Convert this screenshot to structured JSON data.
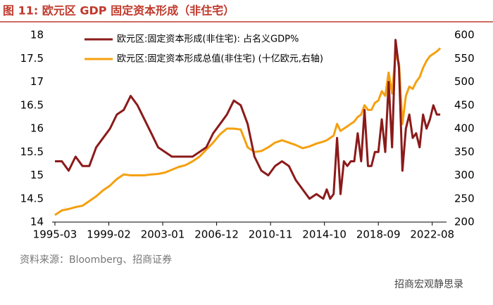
{
  "chart_data": {
    "type": "line",
    "title": "图 11:  欧元区 GDP 固定资本形成（非住宅）",
    "source": "资料来源：Bloomberg、招商证券",
    "watermark": "招商宏观静思录",
    "x": [
      "1995-03",
      "1995-09",
      "1996-03",
      "1996-09",
      "1997-03",
      "1997-09",
      "1998-03",
      "1998-09",
      "1999-03",
      "1999-09",
      "2000-03",
      "2000-09",
      "2001-03",
      "2001-09",
      "2002-03",
      "2002-09",
      "2003-03",
      "2003-09",
      "2004-03",
      "2004-09",
      "2005-03",
      "2005-09",
      "2006-03",
      "2006-09",
      "2007-03",
      "2007-09",
      "2008-03",
      "2008-09",
      "2009-03",
      "2009-09",
      "2010-03",
      "2010-09",
      "2011-03",
      "2011-09",
      "2012-03",
      "2012-09",
      "2013-03",
      "2013-09",
      "2014-03",
      "2014-09",
      "2014-12",
      "2015-03",
      "2015-06",
      "2015-09",
      "2015-12",
      "2016-03",
      "2016-06",
      "2016-09",
      "2016-12",
      "2017-03",
      "2017-06",
      "2017-09",
      "2017-12",
      "2018-03",
      "2018-06",
      "2018-09",
      "2018-12",
      "2019-03",
      "2019-06",
      "2019-09",
      "2019-12",
      "2020-03",
      "2020-06",
      "2020-09",
      "2020-12",
      "2021-03",
      "2021-06",
      "2021-09",
      "2021-12",
      "2022-03",
      "2022-06",
      "2022-09",
      "2022-12",
      "2023-03"
    ],
    "xlim": [
      "1995-03",
      "2023-06"
    ],
    "xticks": [
      "1995-03",
      "1999-02",
      "2003-01",
      "2006-12",
      "2010-11",
      "2014-10",
      "2018-09",
      "2022-08"
    ],
    "ylim": [
      14,
      18
    ],
    "yticks": [
      14,
      14.5,
      15,
      15.5,
      16,
      16.5,
      17,
      17.5,
      18
    ],
    "y2lim": [
      200,
      600
    ],
    "y2ticks": [
      200,
      250,
      300,
      350,
      400,
      450,
      500,
      550,
      600
    ],
    "series": [
      {
        "name": "欧元区:固定资本形成(非住宅): 占名义GDP%",
        "color": "#8b1a1a",
        "axis": "y",
        "values": [
          15.3,
          15.3,
          15.1,
          15.4,
          15.2,
          15.2,
          15.6,
          15.8,
          16.0,
          16.3,
          16.4,
          16.7,
          16.5,
          16.2,
          15.9,
          15.6,
          15.5,
          15.4,
          15.4,
          15.4,
          15.4,
          15.5,
          15.6,
          15.9,
          16.1,
          16.3,
          16.6,
          16.5,
          16.1,
          15.4,
          15.1,
          15.0,
          15.2,
          15.3,
          15.2,
          14.9,
          14.7,
          14.5,
          14.6,
          14.5,
          14.7,
          14.5,
          14.6,
          15.8,
          14.6,
          15.3,
          15.2,
          15.3,
          15.3,
          15.9,
          15.3,
          16.4,
          15.2,
          15.2,
          15.5,
          15.5,
          16.2,
          15.5,
          17.0,
          15.6,
          17.9,
          17.3,
          15.1,
          16.0,
          16.3,
          15.8,
          15.9,
          15.6,
          16.3,
          16.0,
          16.2,
          16.5,
          16.3,
          16.3
        ]
      },
      {
        "name": "欧元区:固定资本形成总值(非住宅) (十亿欧元,右轴)",
        "color": "#f5a00f",
        "axis": "y2",
        "values": [
          215,
          225,
          228,
          232,
          235,
          245,
          255,
          268,
          278,
          292,
          302,
          300,
          300,
          300,
          302,
          303,
          306,
          312,
          318,
          322,
          330,
          340,
          355,
          370,
          388,
          400,
          400,
          398,
          360,
          350,
          352,
          360,
          370,
          375,
          370,
          365,
          358,
          362,
          368,
          372,
          375,
          380,
          385,
          410,
          395,
          400,
          405,
          410,
          415,
          425,
          430,
          450,
          440,
          440,
          455,
          460,
          480,
          470,
          520,
          475,
          560,
          540,
          410,
          470,
          490,
          485,
          500,
          510,
          530,
          545,
          555,
          560,
          565,
          572
        ]
      }
    ]
  }
}
